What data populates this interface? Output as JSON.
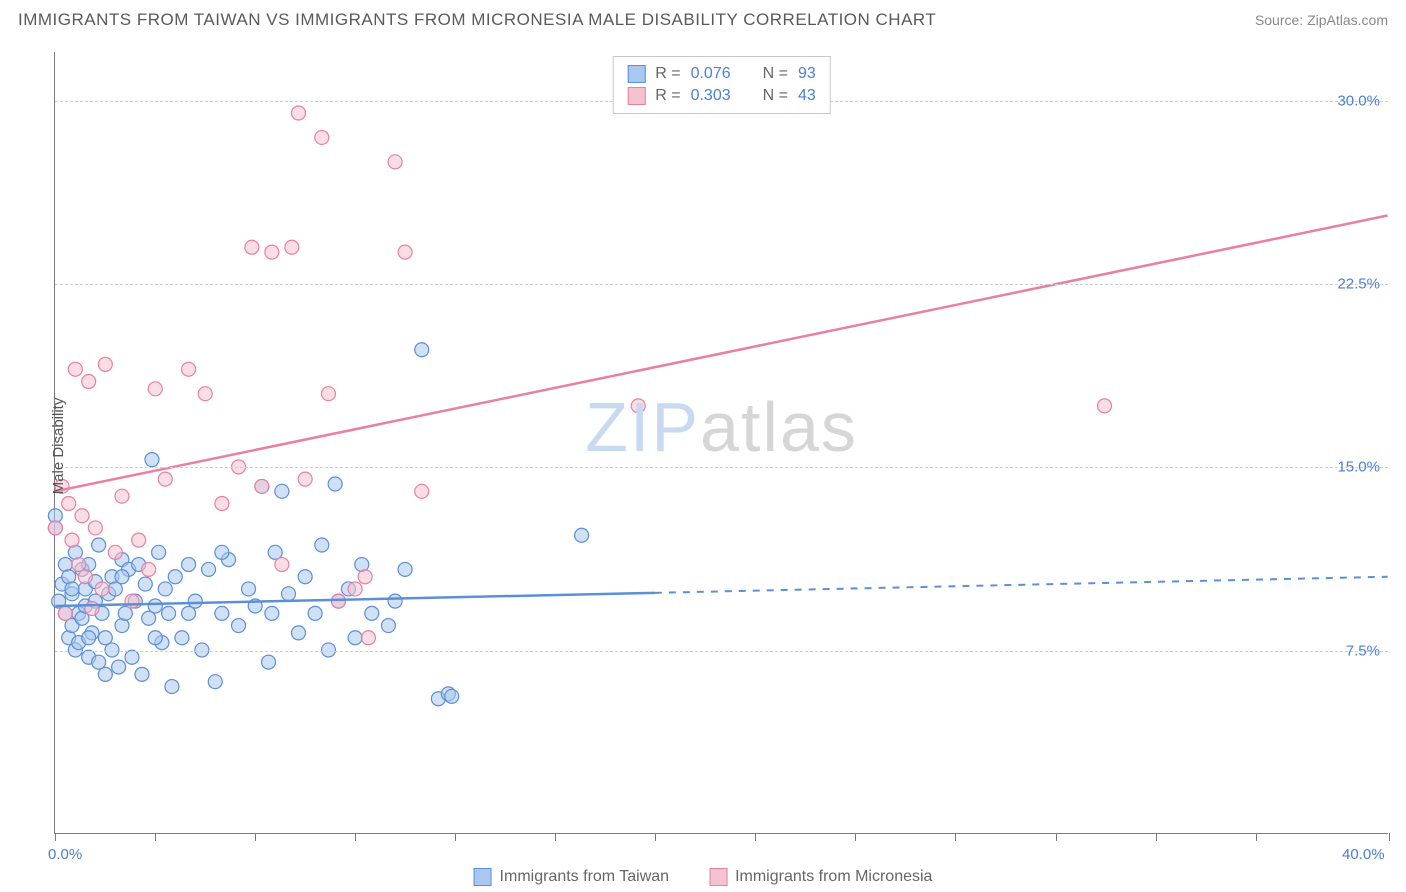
{
  "header": {
    "title": "IMMIGRANTS FROM TAIWAN VS IMMIGRANTS FROM MICRONESIA MALE DISABILITY CORRELATION CHART",
    "source": "Source: ZipAtlas.com"
  },
  "watermark": {
    "part1": "ZIP",
    "part2": "atlas"
  },
  "chart": {
    "type": "scatter",
    "ylabel": "Male Disability",
    "xlim": [
      0,
      40
    ],
    "ylim": [
      0,
      32
    ],
    "x_ticks": [
      0,
      3,
      6,
      9,
      12,
      15,
      18,
      21,
      24,
      27,
      30,
      33,
      36,
      40
    ],
    "x_tick_labels": {
      "0": "0.0%",
      "40": "40.0%"
    },
    "y_gridlines": [
      7.5,
      15.0,
      22.5,
      30.0
    ],
    "y_tick_labels": [
      "7.5%",
      "15.0%",
      "22.5%",
      "30.0%"
    ],
    "background_color": "#ffffff",
    "grid_color": "#d0d0d0",
    "axis_color": "#7a7a7a",
    "label_color": "#4a7fd6",
    "marker_radius": 7,
    "marker_opacity": 0.55,
    "series": [
      {
        "name": "Immigrants from Taiwan",
        "color_fill": "#a9c8ef",
        "color_stroke": "#5b8fd6",
        "R": "0.076",
        "N": "93",
        "regression": {
          "x1": 0,
          "y1": 9.3,
          "x2": 40,
          "y2": 10.5,
          "solid_until_x": 18
        },
        "points": [
          [
            0.0,
            13.0
          ],
          [
            0.1,
            9.5
          ],
          [
            0.2,
            10.2
          ],
          [
            0.3,
            11.0
          ],
          [
            0.3,
            9.0
          ],
          [
            0.4,
            8.0
          ],
          [
            0.4,
            10.5
          ],
          [
            0.5,
            9.8
          ],
          [
            0.5,
            8.5
          ],
          [
            0.6,
            11.5
          ],
          [
            0.6,
            7.5
          ],
          [
            0.7,
            7.8
          ],
          [
            0.7,
            9.0
          ],
          [
            0.8,
            8.8
          ],
          [
            0.8,
            10.8
          ],
          [
            0.9,
            9.3
          ],
          [
            0.9,
            10.0
          ],
          [
            1.0,
            11.0
          ],
          [
            1.0,
            7.2
          ],
          [
            1.1,
            8.2
          ],
          [
            1.2,
            9.5
          ],
          [
            1.2,
            10.3
          ],
          [
            1.3,
            7.0
          ],
          [
            1.3,
            11.8
          ],
          [
            1.4,
            9.0
          ],
          [
            1.5,
            8.0
          ],
          [
            1.5,
            6.5
          ],
          [
            1.6,
            9.8
          ],
          [
            1.7,
            10.5
          ],
          [
            1.7,
            7.5
          ],
          [
            1.8,
            10.0
          ],
          [
            1.9,
            6.8
          ],
          [
            2.0,
            11.2
          ],
          [
            2.0,
            8.5
          ],
          [
            2.1,
            9.0
          ],
          [
            2.2,
            10.8
          ],
          [
            2.3,
            7.2
          ],
          [
            2.4,
            9.5
          ],
          [
            2.5,
            11.0
          ],
          [
            2.6,
            6.5
          ],
          [
            2.7,
            10.2
          ],
          [
            2.8,
            8.8
          ],
          [
            2.9,
            15.3
          ],
          [
            3.0,
            9.3
          ],
          [
            3.1,
            11.5
          ],
          [
            3.2,
            7.8
          ],
          [
            3.3,
            10.0
          ],
          [
            3.4,
            9.0
          ],
          [
            3.5,
            6.0
          ],
          [
            3.6,
            10.5
          ],
          [
            3.8,
            8.0
          ],
          [
            4.0,
            11.0
          ],
          [
            4.2,
            9.5
          ],
          [
            4.4,
            7.5
          ],
          [
            4.6,
            10.8
          ],
          [
            4.8,
            6.2
          ],
          [
            5.0,
            9.0
          ],
          [
            5.2,
            11.2
          ],
          [
            5.5,
            8.5
          ],
          [
            5.8,
            10.0
          ],
          [
            6.0,
            9.3
          ],
          [
            6.2,
            14.2
          ],
          [
            6.4,
            7.0
          ],
          [
            6.6,
            11.5
          ],
          [
            6.8,
            14.0
          ],
          [
            7.0,
            9.8
          ],
          [
            7.3,
            8.2
          ],
          [
            7.5,
            10.5
          ],
          [
            7.8,
            9.0
          ],
          [
            8.0,
            11.8
          ],
          [
            8.2,
            7.5
          ],
          [
            8.4,
            14.3
          ],
          [
            8.5,
            9.5
          ],
          [
            8.8,
            10.0
          ],
          [
            9.0,
            8.0
          ],
          [
            9.2,
            11.0
          ],
          [
            9.5,
            9.0
          ],
          [
            10.0,
            8.5
          ],
          [
            10.2,
            9.5
          ],
          [
            10.5,
            10.8
          ],
          [
            11.0,
            19.8
          ],
          [
            11.5,
            5.5
          ],
          [
            11.8,
            5.7
          ],
          [
            11.9,
            5.6
          ],
          [
            15.8,
            12.2
          ],
          [
            0.0,
            12.5
          ],
          [
            0.5,
            10.0
          ],
          [
            1.0,
            8.0
          ],
          [
            2.0,
            10.5
          ],
          [
            3.0,
            8.0
          ],
          [
            4.0,
            9.0
          ],
          [
            5.0,
            11.5
          ],
          [
            6.5,
            9.0
          ]
        ]
      },
      {
        "name": "Immigrants from Micronesia",
        "color_fill": "#f5c2cf",
        "color_stroke": "#e97fa2",
        "R": "0.303",
        "N": "43",
        "regression": {
          "x1": 0,
          "y1": 14.0,
          "x2": 40,
          "y2": 25.3,
          "solid_until_x": 40
        },
        "points": [
          [
            0.0,
            12.5
          ],
          [
            0.2,
            14.2
          ],
          [
            0.3,
            9.0
          ],
          [
            0.4,
            13.5
          ],
          [
            0.5,
            12.0
          ],
          [
            0.6,
            19.0
          ],
          [
            0.7,
            11.0
          ],
          [
            0.8,
            13.0
          ],
          [
            0.9,
            10.5
          ],
          [
            1.0,
            18.5
          ],
          [
            1.1,
            9.2
          ],
          [
            1.2,
            12.5
          ],
          [
            1.4,
            10.0
          ],
          [
            1.5,
            19.2
          ],
          [
            1.8,
            11.5
          ],
          [
            2.0,
            13.8
          ],
          [
            2.3,
            9.5
          ],
          [
            2.5,
            12.0
          ],
          [
            2.8,
            10.8
          ],
          [
            3.0,
            18.2
          ],
          [
            3.3,
            14.5
          ],
          [
            4.0,
            19.0
          ],
          [
            4.5,
            18.0
          ],
          [
            5.0,
            13.5
          ],
          [
            5.5,
            15.0
          ],
          [
            5.9,
            24.0
          ],
          [
            6.2,
            14.2
          ],
          [
            6.5,
            23.8
          ],
          [
            6.8,
            11.0
          ],
          [
            7.1,
            24.0
          ],
          [
            7.3,
            29.5
          ],
          [
            7.5,
            14.5
          ],
          [
            8.2,
            18.0
          ],
          [
            8.5,
            9.5
          ],
          [
            9.0,
            10.0
          ],
          [
            9.3,
            10.5
          ],
          [
            9.4,
            8.0
          ],
          [
            10.2,
            27.5
          ],
          [
            10.5,
            23.8
          ],
          [
            11.0,
            14.0
          ],
          [
            17.5,
            17.5
          ],
          [
            31.5,
            17.5
          ],
          [
            8.0,
            28.5
          ]
        ]
      }
    ]
  },
  "legend_top": {
    "rows": [
      {
        "swatch_fill": "#a9c8ef",
        "swatch_stroke": "#5b8fd6",
        "r_label": "R =",
        "r_val": "0.076",
        "n_label": "N =",
        "n_val": "93"
      },
      {
        "swatch_fill": "#f5c2cf",
        "swatch_stroke": "#e97fa2",
        "r_label": "R =",
        "r_val": "0.303",
        "n_label": "N =",
        "n_val": "43"
      }
    ]
  },
  "legend_bottom": {
    "items": [
      {
        "swatch_fill": "#a9c8ef",
        "swatch_stroke": "#5b8fd6",
        "label": "Immigrants from Taiwan"
      },
      {
        "swatch_fill": "#f5c2cf",
        "swatch_stroke": "#e97fa2",
        "label": "Immigrants from Micronesia"
      }
    ]
  }
}
